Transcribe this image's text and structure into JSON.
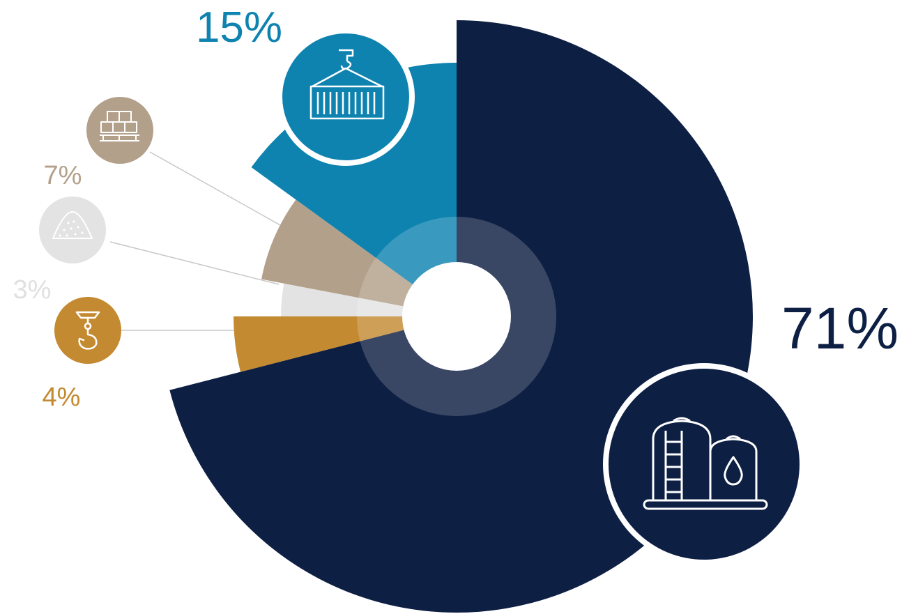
{
  "chart_data": {
    "type": "pie",
    "variant": "rose-donut",
    "title": "",
    "start_angle_deg": 0,
    "direction": "clockwise",
    "slices": [
      {
        "label": "71%",
        "value": 71,
        "color": "#0e1f44",
        "icon": "oil-storage-tank-icon",
        "icon_fill": "#0e1f44"
      },
      {
        "label": "4%",
        "value": 4,
        "color": "#c48a31",
        "icon": "crane-hook-icon",
        "icon_fill": "#c48a31"
      },
      {
        "label": "3%",
        "value": 3,
        "color": "#e3e3e3",
        "icon": "bulk-pile-icon",
        "icon_fill": "#e3e3e3"
      },
      {
        "label": "7%",
        "value": 7,
        "color": "#b3a08a",
        "icon": "palletized-boxes-icon",
        "icon_fill": "#b3a08a"
      },
      {
        "label": "15%",
        "value": 15,
        "color": "#0f83b0",
        "icon": "shipping-container-icon",
        "icon_fill": "#0f83b0"
      }
    ],
    "inner_ring": {
      "color": "#ffffff",
      "opacity": 0.18
    },
    "center_hole_color": "#ffffff",
    "leader_line_color": "#c8c8c8"
  }
}
